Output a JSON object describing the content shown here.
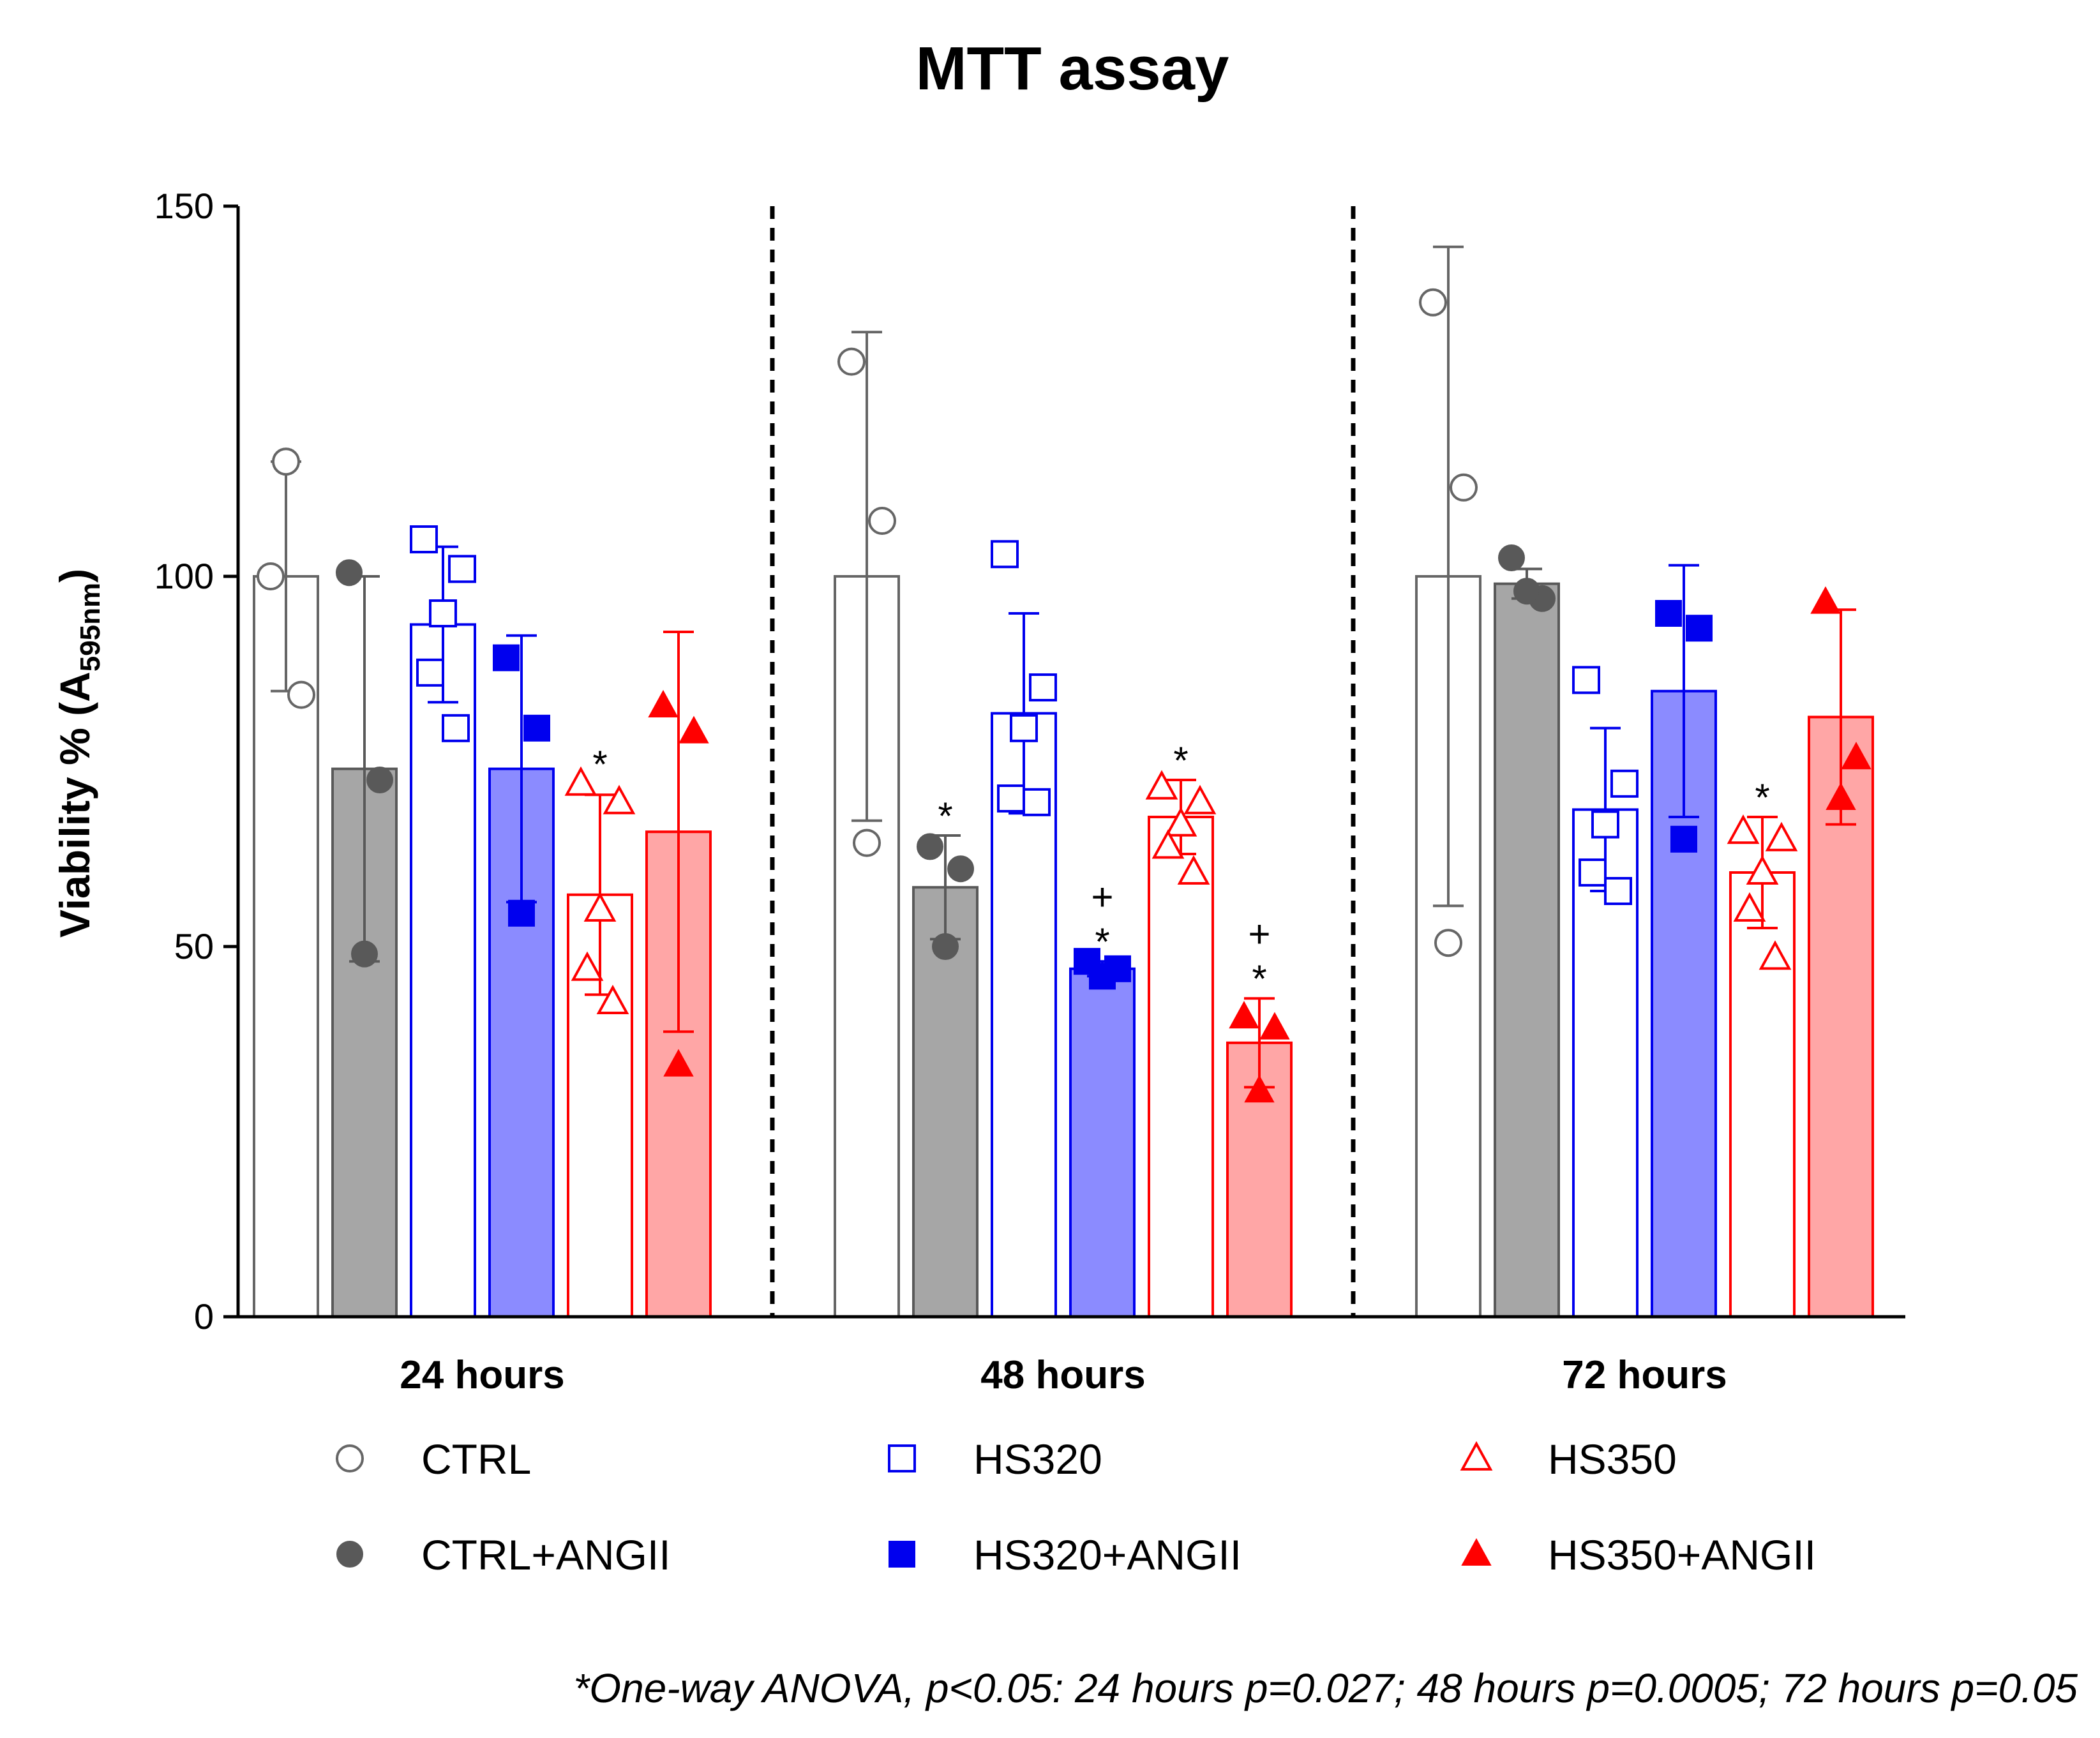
{
  "chart_data": {
    "type": "bar",
    "title": "MTT assay",
    "ylabel": "Viability % (A",
    "ylabel_sub": "595nm",
    "ylabel_close": ")",
    "ylim": [
      0,
      150
    ],
    "yticks": [
      0,
      50,
      100,
      150
    ],
    "groups": [
      "24 hours",
      "48 hours",
      "72 hours"
    ],
    "series": [
      {
        "name": "CTRL",
        "key": "ctrl",
        "color": "#666666",
        "fill": "#ffffff",
        "marker": "circle-open",
        "means": [
          100,
          100,
          100
        ],
        "sd": [
          15.5,
          33,
          44.5
        ],
        "points": [
          [
            100,
            84,
            115.5
          ],
          [
            129,
            107.5,
            64
          ],
          [
            137,
            112,
            50.5
          ]
        ],
        "sig": [
          "",
          "",
          ""
        ]
      },
      {
        "name": "CTRL+ANGII",
        "key": "ctrl_angii",
        "color": "#595959",
        "fill": "#a6a6a6",
        "marker": "circle-filled",
        "means": [
          74,
          58,
          99
        ],
        "sd": [
          26,
          7,
          2
        ],
        "points": [
          [
            100.5,
            72.5,
            49
          ],
          [
            63.5,
            60.5,
            50
          ],
          [
            102.5,
            97,
            98
          ]
        ],
        "sig": [
          "",
          "*",
          ""
        ]
      },
      {
        "name": "HS320",
        "key": "hs320",
        "color": "#0000ee",
        "fill": "#ffffff",
        "marker": "square-open",
        "means": [
          93.5,
          81.5,
          68.5
        ],
        "sd": [
          10.5,
          13.5,
          11
        ],
        "points": [
          [
            105,
            101,
            95,
            87,
            79.5
          ],
          [
            103,
            85,
            79.5,
            70,
            69.5
          ],
          [
            86,
            72,
            66.5,
            60,
            57.5
          ]
        ],
        "sig": [
          "",
          "",
          ""
        ]
      },
      {
        "name": "HS320+ANGII",
        "key": "hs320_angii",
        "color": "#0000ee",
        "fill": "#8b8bff",
        "marker": "square-filled",
        "means": [
          74,
          47,
          84.5
        ],
        "sd": [
          18,
          1,
          17
        ],
        "points": [
          [
            89,
            79.5,
            54.5
          ],
          [
            48,
            47,
            46
          ],
          [
            95,
            93,
            64.5
          ]
        ],
        "sig": [
          "",
          "*",
          ""
        ],
        "sig2": [
          "",
          "+",
          ""
        ]
      },
      {
        "name": "HS350",
        "key": "hs350",
        "color": "#ff0000",
        "fill": "#ffffff",
        "marker": "triangle-open",
        "means": [
          57,
          67.5,
          60
        ],
        "sd": [
          13.5,
          5,
          7.5
        ],
        "points": [
          [
            72,
            69.5,
            55,
            47,
            42.5
          ],
          [
            71.5,
            69.5,
            66.5,
            63.5,
            60
          ],
          [
            65.5,
            64.5,
            60,
            55,
            48.5
          ]
        ],
        "sig": [
          "*",
          "*",
          "*"
        ]
      },
      {
        "name": "HS350+ANGII",
        "key": "hs350_angii",
        "color": "#ff0000",
        "fill": "#ffa6a6",
        "marker": "triangle-filled",
        "means": [
          65.5,
          37,
          81
        ],
        "sd": [
          27,
          6,
          14.5
        ],
        "points": [
          [
            82.5,
            79,
            34
          ],
          [
            40.5,
            39,
            30.5
          ],
          [
            96.5,
            75.5,
            70
          ]
        ],
        "sig": [
          "",
          "*",
          ""
        ],
        "sig2": [
          "",
          "+",
          ""
        ]
      }
    ],
    "legend_placement": "bottom"
  },
  "footnote": "*One-way ANOVA, p<0.05: 24 hours p=0.027; 48 hours p=0.0005; 72 hours p=0.05"
}
